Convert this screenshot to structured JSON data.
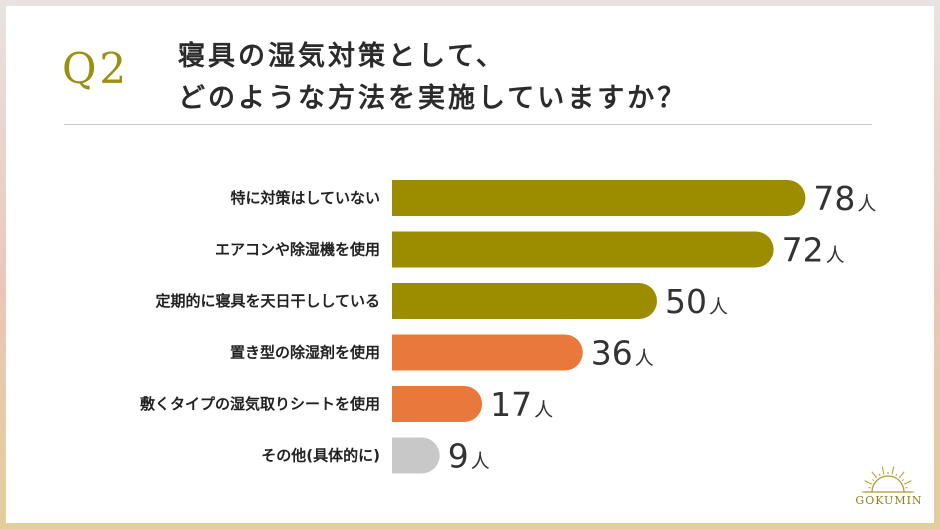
{
  "question": {
    "label": "Q2",
    "line1": "寝具の湿気対策として、",
    "line2": "どのような方法を実施していますか？"
  },
  "brand": {
    "name": "GOKUMIN",
    "icon": "sunburst-logo-icon"
  },
  "colors": {
    "olive": "#9b8c00",
    "orange": "#e8783b",
    "gray": "#c8c8c8"
  },
  "chart_data": {
    "type": "bar",
    "orientation": "horizontal",
    "categories": [
      "特に対策はしていない",
      "エアコンや除湿機を使用",
      "定期的に寝具を天日干ししている",
      "置き型の除湿剤を使用",
      "敷くタイプの湿気取りシートを使用",
      "その他(具体的に)"
    ],
    "values": [
      78,
      72,
      50,
      36,
      17,
      9
    ],
    "unit": "人",
    "bar_colors": [
      "#9b8c00",
      "#9b8c00",
      "#9b8c00",
      "#e8783b",
      "#e8783b",
      "#c8c8c8"
    ],
    "grid": false
  }
}
